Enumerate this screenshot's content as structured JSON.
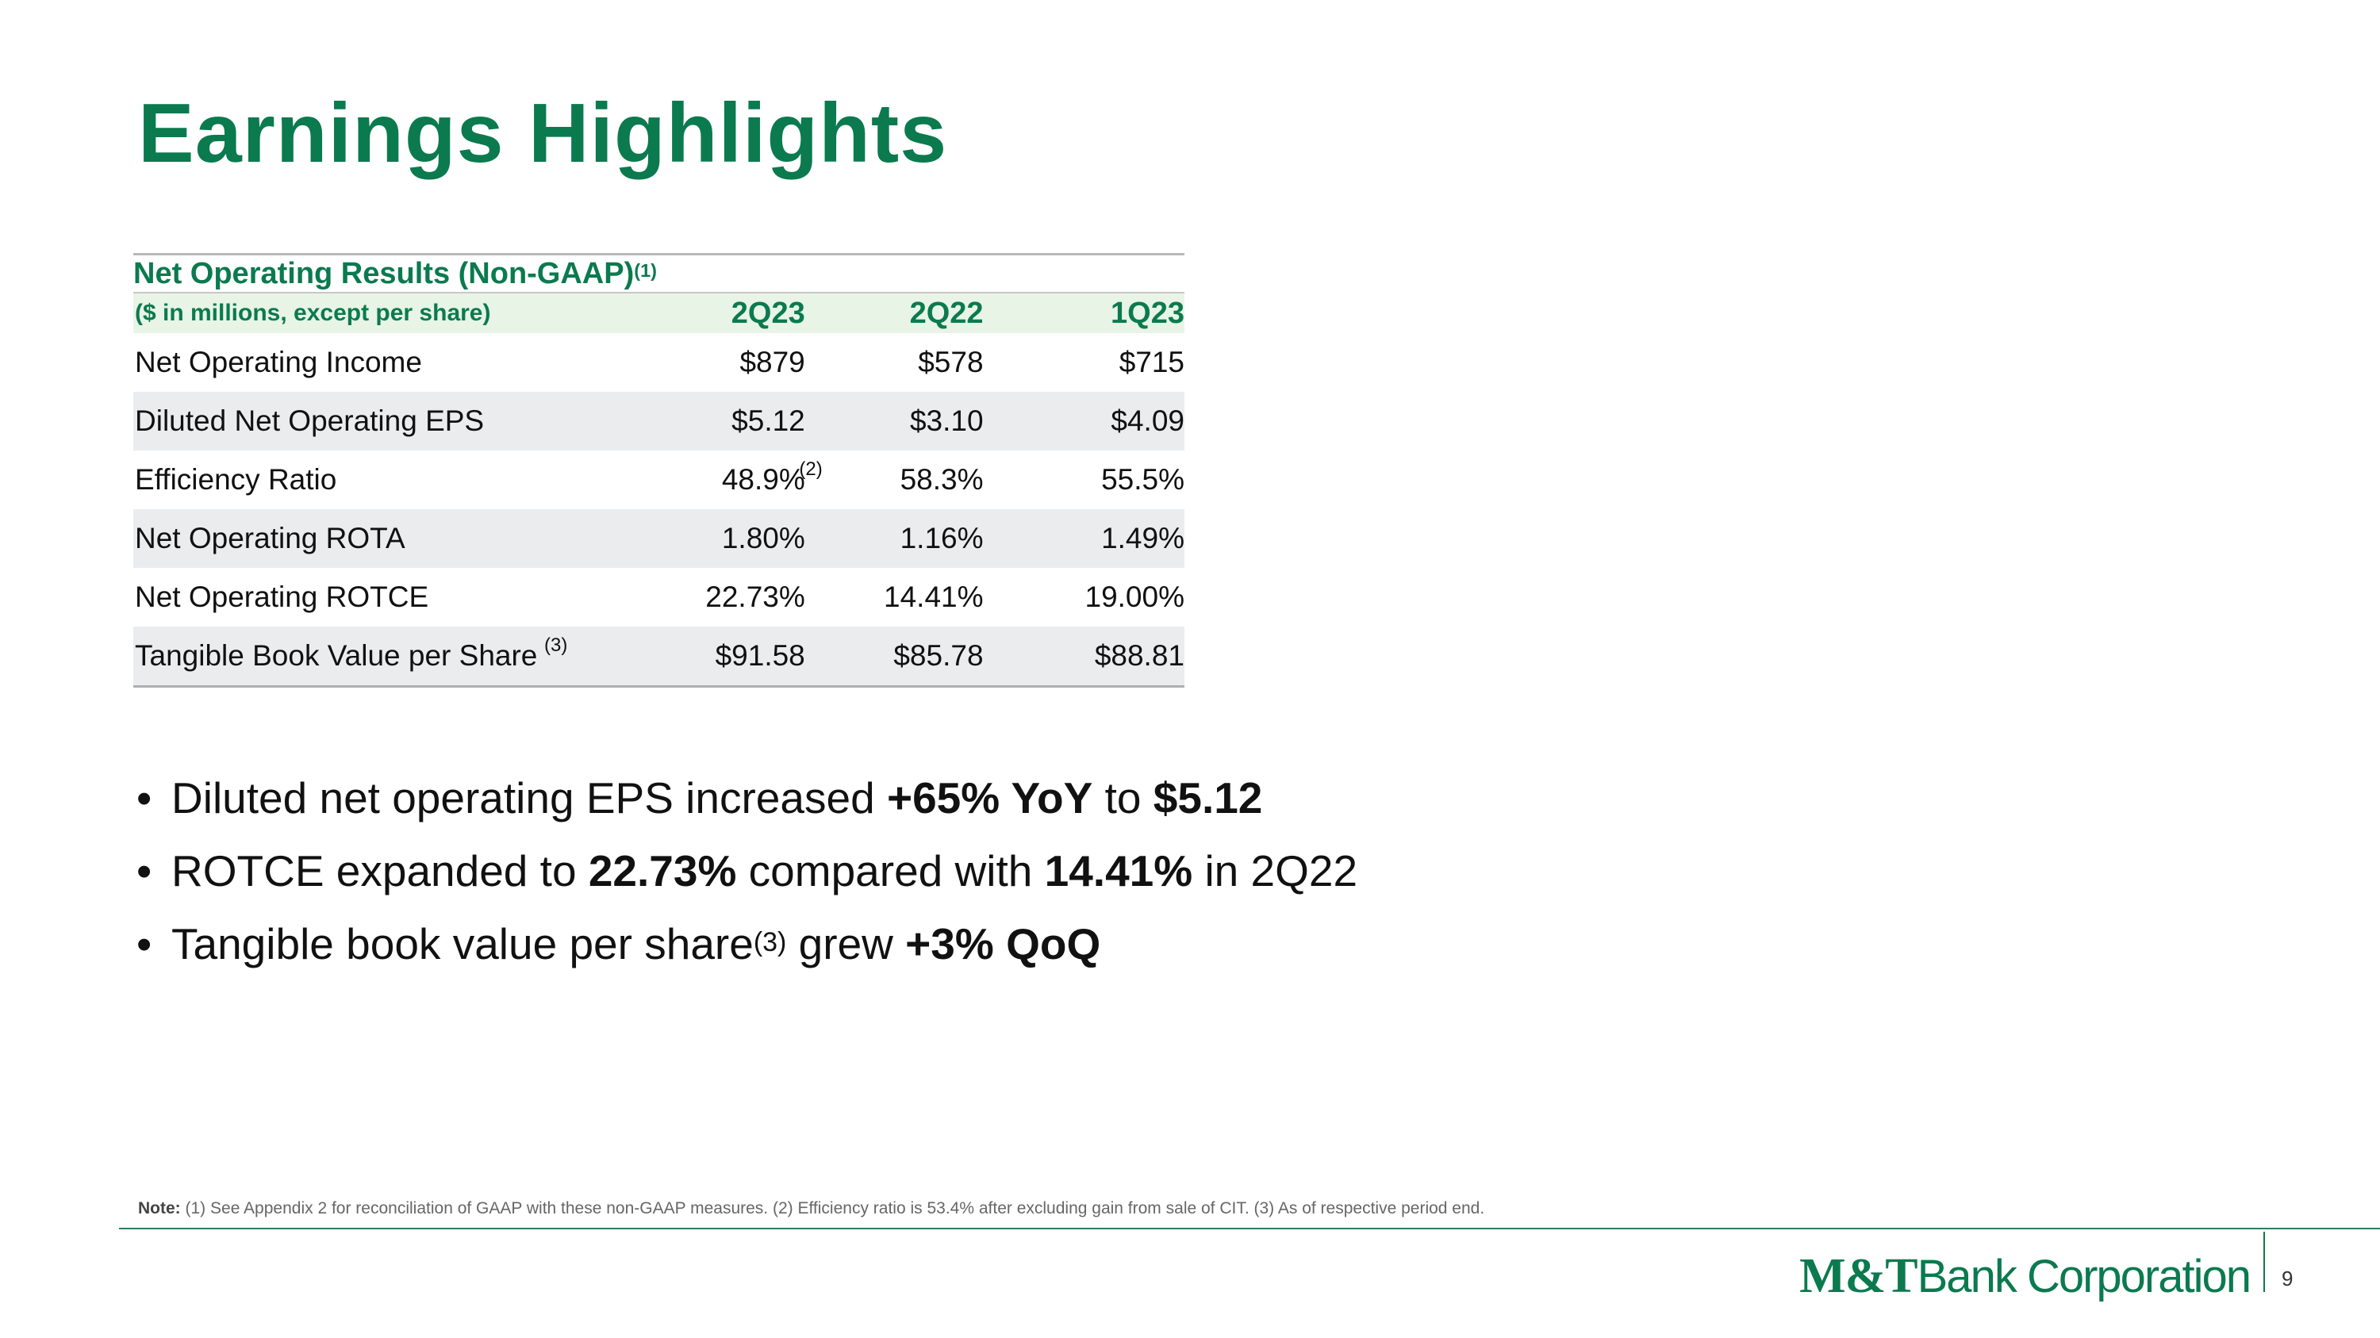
{
  "slide": {
    "title": "Earnings Highlights",
    "page_number": "9"
  },
  "table": {
    "heading": "Net Operating Results (Non-GAAP)",
    "heading_note": "(1)",
    "units_label": "($ in millions, except per share)",
    "columns": [
      "2Q23",
      "2Q22",
      "1Q23"
    ],
    "rows": [
      {
        "label": "Net Operating Income",
        "label_note": "",
        "values": [
          "$879",
          "$578",
          "$715"
        ],
        "value_note": ""
      },
      {
        "label": "Diluted Net Operating EPS",
        "label_note": "",
        "values": [
          "$5.12",
          "$3.10",
          "$4.09"
        ],
        "value_note": ""
      },
      {
        "label": "Efficiency Ratio",
        "label_note": "",
        "values": [
          "48.9%",
          "58.3%",
          "55.5%"
        ],
        "value_note": "(2)"
      },
      {
        "label": "Net Operating ROTA",
        "label_note": "",
        "values": [
          "1.80%",
          "1.16%",
          "1.49%"
        ],
        "value_note": ""
      },
      {
        "label": "Net Operating ROTCE",
        "label_note": "",
        "values": [
          "22.73%",
          "14.41%",
          "19.00%"
        ],
        "value_note": ""
      },
      {
        "label": "Tangible Book Value per Share",
        "label_note": "(3)",
        "values": [
          "$91.58",
          "$85.78",
          "$88.81"
        ],
        "value_note": ""
      }
    ]
  },
  "bullets": [
    {
      "t1": "Diluted net operating EPS increased ",
      "b1": "+65% YoY",
      "t2": " to ",
      "b2": "$5.12",
      "t3": ""
    },
    {
      "t1": "ROTCE expanded to ",
      "b1": "22.73%",
      "t2": " compared with ",
      "b2": "14.41%",
      "t3": " in 2Q22"
    },
    {
      "t1": "Tangible book value per share",
      "sup": "(3)",
      "t2": " grew ",
      "b2": "+3% QoQ"
    }
  ],
  "bullet_symbol": "•",
  "note": {
    "label": "Note:",
    "text": " (1) See Appendix 2 for reconciliation of GAAP with these non-GAAP measures. (2) Efficiency ratio is 53.4% after excluding gain from sale of CIT. (3) As of respective period end."
  },
  "logo": {
    "brand": "M&T",
    "rest": "Bank Corporation"
  },
  "colors": {
    "brand_green": "#0b7a4f",
    "header_fill": "#e8f4e5",
    "row_shade": "#ebecee"
  }
}
